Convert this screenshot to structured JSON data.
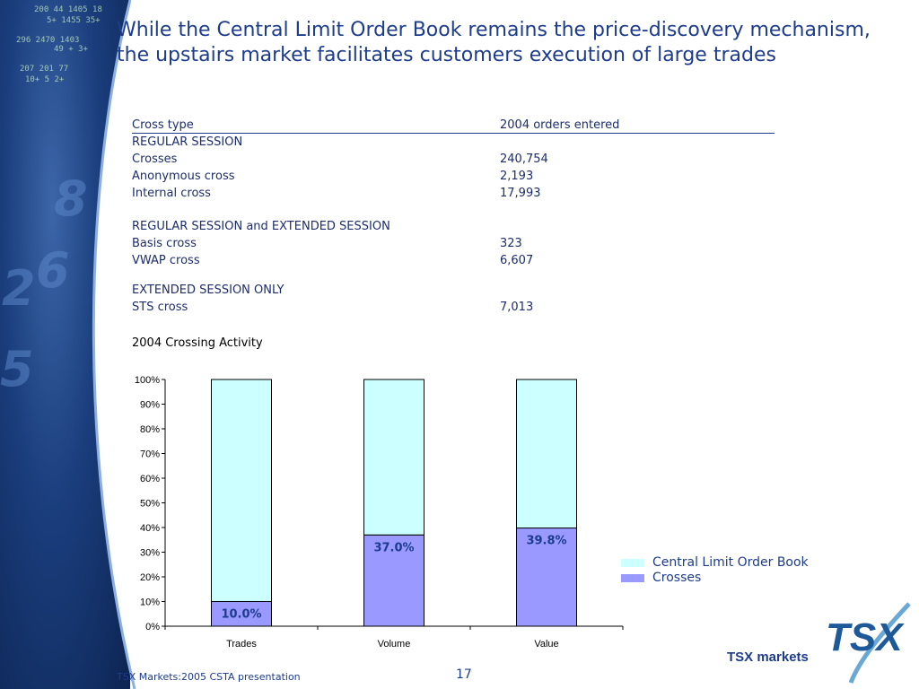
{
  "title": {
    "line1": "While the Central Limit Order Book remains the price-discovery mechanism,",
    "line2": "the upstairs market facilitates customers execution of large trades"
  },
  "table": {
    "headers": [
      "Cross type",
      "2004 orders entered"
    ],
    "sections": [
      {
        "name": "REGULAR SESSION",
        "rows": [
          {
            "type": "Crosses",
            "orders": "240,754"
          },
          {
            "type": "Anonymous cross",
            "orders": "2,193"
          },
          {
            "type": "Internal cross",
            "orders": "17,993"
          }
        ]
      },
      {
        "name": "REGULAR SESSION and EXTENDED SESSION",
        "rows": [
          {
            "type": "Basis cross",
            "orders": "323"
          },
          {
            "type": "VWAP cross",
            "orders": "6,607"
          }
        ]
      },
      {
        "name": "EXTENDED SESSION ONLY",
        "rows": [
          {
            "type": "STS cross",
            "orders": "7,013"
          }
        ]
      }
    ]
  },
  "chart_data": {
    "type": "bar",
    "stacked": true,
    "title": "2004 Crossing Activity",
    "categories": [
      "Trades",
      "Volume",
      "Value"
    ],
    "series": [
      {
        "name": "Crosses",
        "values": [
          10.0,
          37.0,
          39.8
        ],
        "color": "#9999ff"
      },
      {
        "name": "Central Limit Order Book",
        "values": [
          90.0,
          63.0,
          60.2
        ],
        "color": "#ccffff"
      }
    ],
    "data_labels": [
      "10.0%",
      "37.0%",
      "39.8%"
    ],
    "ylim": [
      0,
      100
    ],
    "yticks": [
      "0%",
      "10%",
      "20%",
      "30%",
      "40%",
      "50%",
      "60%",
      "70%",
      "80%",
      "90%",
      "100%"
    ],
    "legend_position": "right",
    "legend_order": [
      "Central Limit Order Book",
      "Crosses"
    ],
    "grid": false
  },
  "footer": {
    "left": "TSX Markets:2005 CSTA presentation",
    "page": "17"
  },
  "logo": {
    "mark": "TSX",
    "text": "TSX markets"
  },
  "background": {
    "ticker_lines": [
      "200  44  1405  18",
      "5+  1455  35+",
      "296  2470  1403",
      "49  +  3+",
      "207  201  77",
      "10+  5  2+"
    ],
    "numbers": [
      "8",
      "6",
      "2",
      "5"
    ]
  },
  "colors": {
    "title": "#1d3c8c",
    "crosses": "#9999ff",
    "clob": "#ccffff",
    "label_text": "#1d3c8c"
  }
}
